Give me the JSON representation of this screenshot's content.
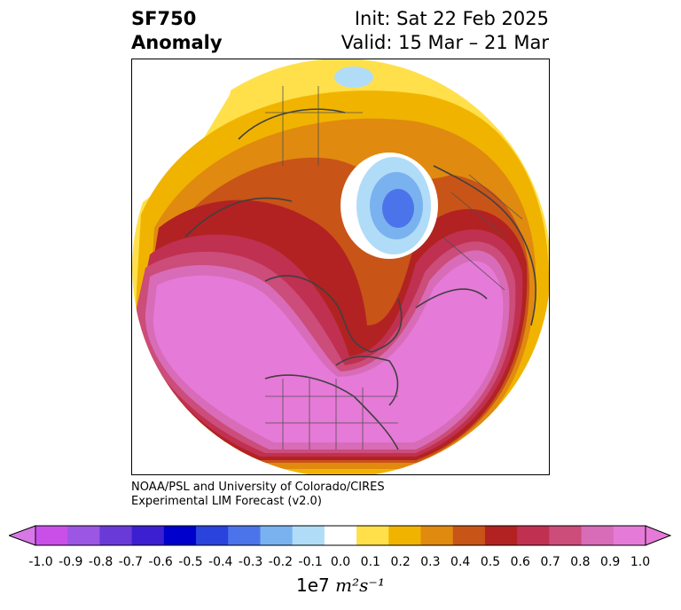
{
  "title": {
    "line1": "SF750",
    "line2": "Anomaly"
  },
  "subtitle": {
    "init": "Init: Sat 22 Feb 2025",
    "valid": "Valid: 15 Mar – 21 Mar"
  },
  "credit": {
    "line1": "NOAA/PSL and University of Colorado/CIRES",
    "line2": "Experimental LIM Forecast (v2.0)"
  },
  "colorbar": {
    "ticks": [
      "-1.0",
      "-0.9",
      "-0.8",
      "-0.7",
      "-0.6",
      "-0.5",
      "-0.4",
      "-0.3",
      "-0.2",
      "-0.1",
      "0.0",
      "0.1",
      "0.2",
      "0.3",
      "0.4",
      "0.5",
      "0.6",
      "0.7",
      "0.8",
      "0.9",
      "1.0"
    ],
    "colors": [
      "#c94fe8",
      "#9b57e3",
      "#6a3ad8",
      "#3b1fd0",
      "#0000cc",
      "#2a43dc",
      "#4c74ea",
      "#7ab2f0",
      "#b0dcf8",
      "#ffffff",
      "#ffe04a",
      "#f0b400",
      "#e08a10",
      "#c85418",
      "#b22222",
      "#c03050",
      "#cc4c7a",
      "#d86cb8",
      "#e67ad8"
    ],
    "under_color": "#d877e8",
    "over_color": "#e67ad8",
    "units_prefix": "1e7",
    "units": "m²s⁻¹"
  }
}
